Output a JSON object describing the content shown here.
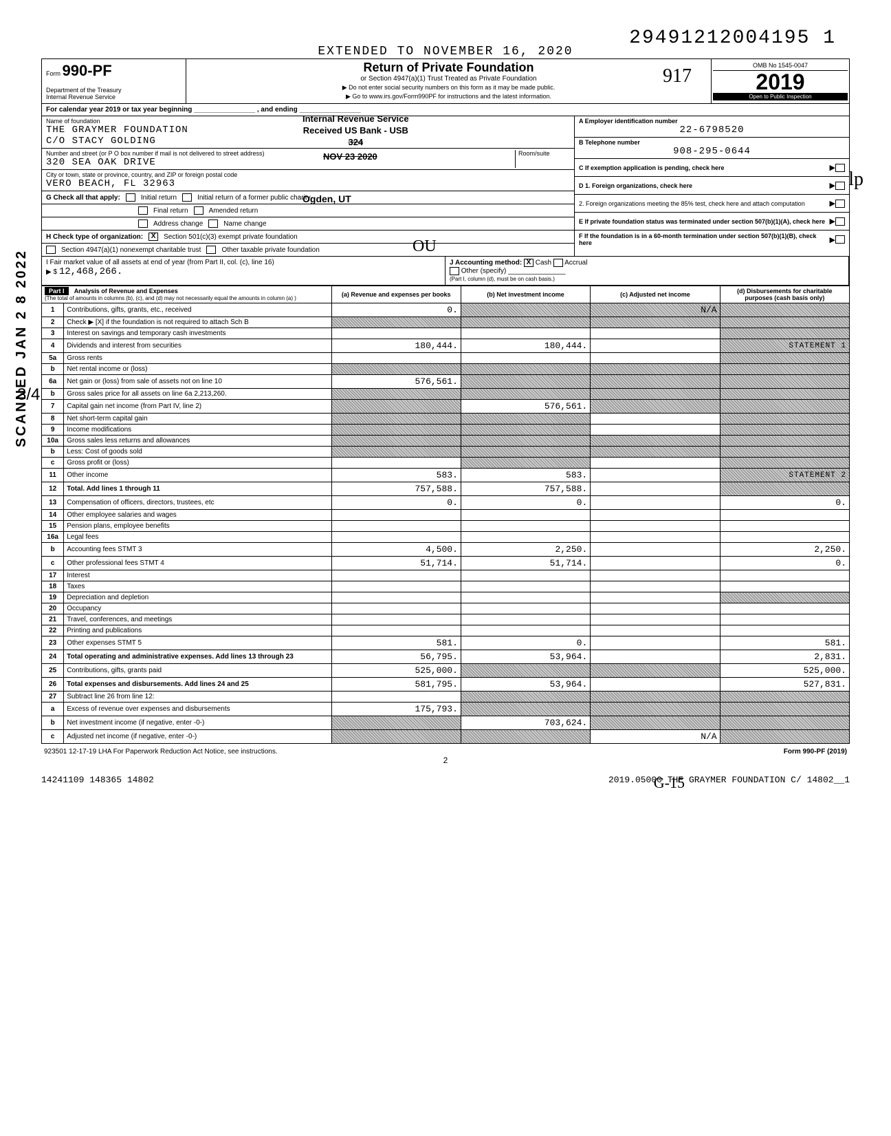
{
  "scan": {
    "top_right_number": "29491212004195 1",
    "side_vertical": "SCANNED JAN 2 8 2022",
    "side_frac": "3/4",
    "hw_917": "917",
    "hw_ou": "OU",
    "hw_gis": "G-15",
    "hw_scribble": "lp"
  },
  "header": {
    "extended_to": "EXTENDED TO NOVEMBER 16, 2020",
    "form_prefix": "Form",
    "form_number": "990-PF",
    "dept": "Department of the Treasury",
    "irs": "Internal Revenue Service",
    "title": "Return of Private Foundation",
    "subtitle": "or Section 4947(a)(1) Trust Treated as Private Foundation",
    "arrow1": "▶ Do not enter social security numbers on this form as it may be made public.",
    "arrow2": "▶ Go to www.irs.gov/Form990PF for instructions and the latest information.",
    "omb": "OMB No 1545-0047",
    "year": "2019",
    "open": "Open to Public Inspection"
  },
  "stamps": {
    "s1a": "Internal Revenue Service",
    "s1b": "Received US Bank - USB",
    "s1c": "324",
    "s2": "NOV 23 2020",
    "s3a": "Initial return of a former public charity",
    "s3b": "Ogden, UT"
  },
  "cal_row": "For calendar year 2019 or tax year beginning ________________ , and ending ________________",
  "info": {
    "name_lbl": "Name of foundation",
    "name1": "THE GRAYMER FOUNDATION",
    "name2": "C/O STACY GOLDING",
    "addr_lbl": "Number and street (or P O box number if mail is not delivered to street address)",
    "addr": "320 SEA OAK DRIVE",
    "room_lbl": "Room/suite",
    "city_lbl": "City or town, state or province, country, and ZIP or foreign postal code",
    "city": "VERO BEACH, FL  32963",
    "ein_lbl": "A  Employer identification number",
    "ein": "22-6798520",
    "tel_lbl": "B  Telephone number",
    "tel": "908-295-0644",
    "c_lbl": "C  If exemption application is pending, check here",
    "d1_lbl": "D 1. Foreign organizations, check here",
    "d2_lbl": "2. Foreign organizations meeting the 85% test, check here and attach computation",
    "e_lbl": "E  If private foundation status was terminated under section 507(b)(1)(A), check here",
    "f_lbl": "F  If the foundation is in a 60-month termination under section 507(b)(1)(B), check here"
  },
  "g": {
    "lbl": "G  Check all that apply:",
    "opts": [
      "Initial return",
      "Final return",
      "Address change",
      "Initial return of a former public charity",
      "Amended return",
      "Name change"
    ]
  },
  "h": {
    "lbl": "H  Check type of organization:",
    "opt1": "Section 501(c)(3) exempt private foundation",
    "opt2": "Section 4947(a)(1) nonexempt charitable trust",
    "opt3": "Other taxable private foundation"
  },
  "ij": {
    "i_lbl": "I  Fair market value of all assets at end of year (from Part II, col. (c), line 16)",
    "i_val": "12,468,266.",
    "j_lbl": "J  Accounting method:",
    "j_cash": "Cash",
    "j_accrual": "Accrual",
    "j_other": "Other (specify)",
    "j_note": "(Part I, column (d), must be on cash basis.)"
  },
  "part1": {
    "label": "Part I",
    "title": "Analysis of Revenue and Expenses",
    "subtitle": "(The total of amounts in columns (b), (c), and (d) may not necessarily equal the amounts in column (a) )",
    "cols": {
      "a": "(a) Revenue and expenses per books",
      "b": "(b) Net investment income",
      "c": "(c) Adjusted net income",
      "d": "(d) Disbursements for charitable purposes (cash basis only)"
    }
  },
  "sidelabels": {
    "rev": "Revenue",
    "exp": "Operating and Administrative Expenses"
  },
  "rows": [
    {
      "n": "1",
      "d": "shade",
      "a": "0.",
      "b": "shade",
      "c": "N/A shade"
    },
    {
      "n": "2",
      "d": "shade",
      "a": "shade",
      "b": "shade",
      "c": "shade"
    },
    {
      "n": "3",
      "d": "shade",
      "a": "",
      "b": "",
      "c": ""
    },
    {
      "n": "4",
      "d": "STATEMENT 1 stmt",
      "a": "180,444.",
      "b": "180,444.",
      "c": ""
    },
    {
      "n": "5a",
      "d": "shade",
      "a": "",
      "b": "",
      "c": ""
    },
    {
      "n": "b",
      "d": "shade",
      "a": "shade",
      "b": "shade",
      "c": "shade"
    },
    {
      "n": "6a",
      "d": "shade",
      "a": "576,561.",
      "b": "shade",
      "c": "shade"
    },
    {
      "n": "b",
      "d": "shade",
      "a": "shade",
      "b": "shade",
      "c": "shade"
    },
    {
      "n": "7",
      "d": "shade",
      "a": "shade",
      "b": "576,561.",
      "c": "shade"
    },
    {
      "n": "8",
      "d": "shade",
      "a": "shade",
      "b": "shade",
      "c": ""
    },
    {
      "n": "9",
      "d": "shade",
      "a": "shade",
      "b": "shade",
      "c": ""
    },
    {
      "n": "10a",
      "d": "shade",
      "a": "shade",
      "b": "shade",
      "c": "shade"
    },
    {
      "n": "b",
      "d": "shade",
      "a": "shade",
      "b": "shade",
      "c": "shade"
    },
    {
      "n": "c",
      "d": "shade",
      "a": "",
      "b": "shade",
      "c": ""
    },
    {
      "n": "11",
      "d": "STATEMENT 2 stmt",
      "a": "583.",
      "b": "583.",
      "c": ""
    },
    {
      "n": "12",
      "d": "shade",
      "a": "757,588.",
      "b": "757,588.",
      "c": "",
      "bold": true
    },
    {
      "n": "13",
      "d": "0.",
      "a": "0.",
      "b": "0.",
      "c": ""
    },
    {
      "n": "14",
      "d": "",
      "a": "",
      "b": "",
      "c": ""
    },
    {
      "n": "15",
      "d": "",
      "a": "",
      "b": "",
      "c": ""
    },
    {
      "n": "16a",
      "d": "",
      "a": "",
      "b": "",
      "c": ""
    },
    {
      "n": "b",
      "d": "2,250.",
      "a": "4,500.",
      "b": "2,250.",
      "c": ""
    },
    {
      "n": "c",
      "d": "0.",
      "a": "51,714.",
      "b": "51,714.",
      "c": ""
    },
    {
      "n": "17",
      "d": "",
      "a": "",
      "b": "",
      "c": ""
    },
    {
      "n": "18",
      "d": "",
      "a": "",
      "b": "",
      "c": ""
    },
    {
      "n": "19",
      "d": "shade",
      "a": "",
      "b": "",
      "c": ""
    },
    {
      "n": "20",
      "d": "",
      "a": "",
      "b": "",
      "c": ""
    },
    {
      "n": "21",
      "d": "",
      "a": "",
      "b": "",
      "c": ""
    },
    {
      "n": "22",
      "d": "",
      "a": "",
      "b": "",
      "c": ""
    },
    {
      "n": "23",
      "d": "581.",
      "a": "581.",
      "b": "0.",
      "c": ""
    },
    {
      "n": "24",
      "d": "2,831.",
      "a": "56,795.",
      "b": "53,964.",
      "c": "",
      "bold": true
    },
    {
      "n": "25",
      "d": "525,000.",
      "a": "525,000.",
      "b": "shade",
      "c": "shade"
    },
    {
      "n": "26",
      "d": "527,831.",
      "a": "581,795.",
      "b": "53,964.",
      "c": "",
      "bold": true
    },
    {
      "n": "27",
      "d": "shade",
      "a": "",
      "b": "shade",
      "c": "shade"
    },
    {
      "n": "a",
      "d": "shade",
      "a": "175,793.",
      "b": "shade",
      "c": "shade"
    },
    {
      "n": "b",
      "d": "shade",
      "a": "shade",
      "b": "703,624.",
      "c": "shade"
    },
    {
      "n": "c",
      "d": "shade",
      "a": "shade",
      "b": "shade",
      "c": "N/A"
    }
  ],
  "footer": {
    "left": "923501 12-17-19   LHA  For Paperwork Reduction Act Notice, see instructions.",
    "right": "Form 990-PF (2019)",
    "pagenum": "2",
    "bottom_left": "14241109 148365 14802",
    "bottom_right": "2019.05000 THE GRAYMER FOUNDATION C/ 14802__1"
  },
  "colors": {
    "border": "#000000",
    "shade_a": "#888888",
    "shade_b": "#cccccc",
    "bg": "#ffffff"
  }
}
